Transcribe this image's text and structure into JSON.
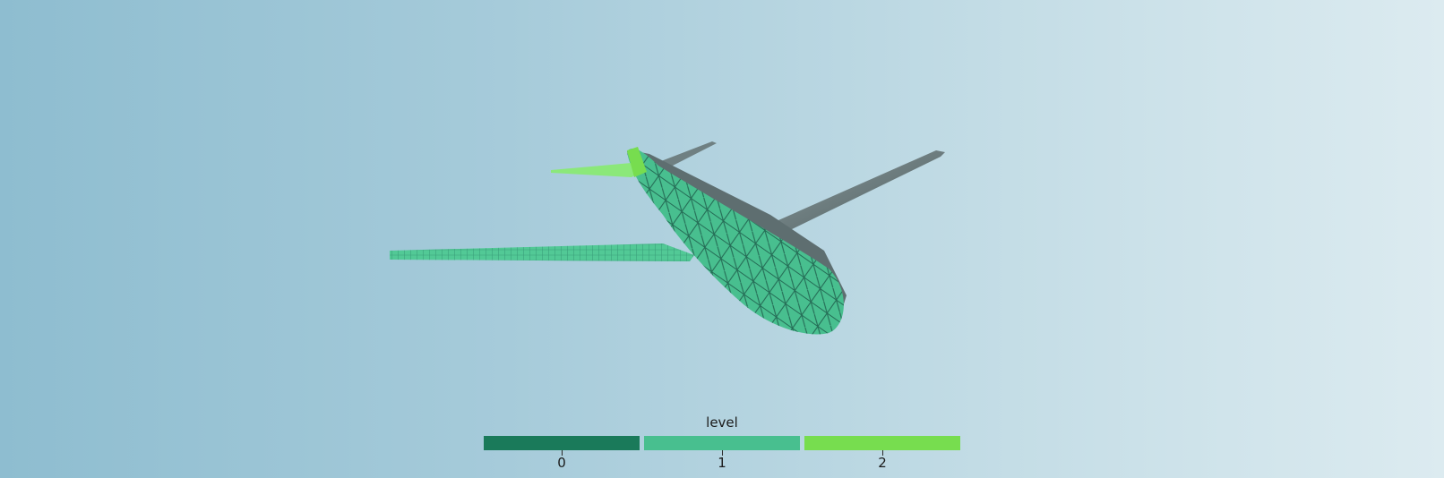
{
  "scene": {
    "object": "airplane-mesh",
    "background_gradient": [
      "#8ebdd0",
      "#dcebf0"
    ]
  },
  "colorbar": {
    "title": "level",
    "entries": [
      {
        "label": "0",
        "color": "#1a7a5a"
      },
      {
        "label": "1",
        "color": "#48bf8f"
      },
      {
        "label": "2",
        "color": "#77dd4f"
      }
    ]
  }
}
